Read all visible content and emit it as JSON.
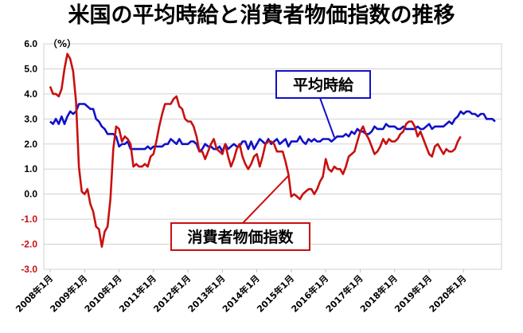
{
  "title": "米国の平均時給と消費者物価指数の推移",
  "chart_data": {
    "type": "line",
    "title": "米国の平均時給と消費者物価指数の推移",
    "unit_label": "（%）",
    "ylim": [
      -3.0,
      6.0
    ],
    "y_ticks": [
      "6.0",
      "5.0",
      "4.0",
      "3.0",
      "2.0",
      "1.0",
      "0.0",
      "-1.0",
      "-2.0",
      "-3.0"
    ],
    "x_start": "2008-01",
    "x_ticks": [
      "2008年1月",
      "2009年1月",
      "2010年1月",
      "2011年1月",
      "2012年1月",
      "2013年1月",
      "2014年1月",
      "2015年1月",
      "2016年1月",
      "2017年1月",
      "2018年1月",
      "2019年1月",
      "2020年1月"
    ],
    "grid": true,
    "colors": {
      "wage": "#1010c8",
      "cpi": "#c81010"
    },
    "series": [
      {
        "name": "平均時給",
        "key": "wage",
        "values": [
          2.9,
          2.8,
          3.0,
          2.8,
          3.1,
          2.8,
          3.1,
          3.3,
          3.2,
          3.3,
          3.6,
          3.6,
          3.6,
          3.5,
          3.4,
          3.4,
          3.0,
          2.9,
          2.7,
          2.6,
          2.4,
          2.4,
          2.4,
          2.3,
          1.9,
          2.0,
          2.0,
          2.1,
          1.8,
          1.8,
          1.8,
          1.8,
          1.8,
          1.8,
          1.9,
          1.8,
          1.9,
          1.9,
          1.9,
          1.9,
          2.0,
          2.0,
          2.2,
          2.1,
          2.0,
          2.2,
          2.0,
          2.0,
          2.0,
          2.1,
          2.1,
          2.0,
          1.7,
          1.8,
          2.0,
          1.9,
          1.9,
          1.8,
          1.8,
          1.9,
          1.7,
          2.0,
          1.8,
          1.9,
          2.0,
          1.9,
          1.9,
          2.1,
          2.1,
          1.8,
          2.1,
          1.8,
          2.0,
          2.2,
          2.1,
          2.0,
          2.2,
          2.0,
          2.1,
          2.2,
          2.0,
          2.1,
          2.2,
          1.9,
          2.1,
          2.1,
          2.1,
          2.3,
          2.1,
          2.0,
          2.2,
          2.1,
          2.2,
          2.1,
          2.1,
          2.2,
          2.2,
          2.2,
          2.1,
          2.2,
          2.3,
          2.3,
          2.3,
          2.4,
          2.3,
          2.5,
          2.4,
          2.6,
          2.5,
          2.5,
          2.4,
          2.4,
          2.5,
          2.7,
          2.6,
          2.6,
          2.6,
          2.8,
          2.7,
          2.7,
          2.7,
          2.6,
          2.6,
          2.7,
          2.6,
          2.6,
          2.6,
          2.6,
          2.7,
          2.6,
          2.6,
          2.7,
          2.8,
          2.6,
          2.7,
          2.7,
          2.7,
          2.7,
          2.8,
          2.9,
          2.8,
          3.0,
          3.1,
          3.3,
          3.2,
          3.3,
          3.3,
          3.2,
          3.2,
          3.1,
          3.2,
          3.2,
          3.0,
          3.0,
          3.0,
          2.9
        ]
      },
      {
        "name": "消費者物価指数",
        "key": "cpi",
        "values": [
          4.3,
          4.0,
          4.0,
          3.9,
          4.2,
          5.0,
          5.6,
          5.4,
          4.9,
          3.7,
          1.1,
          0.1,
          0.0,
          0.2,
          -0.4,
          -0.7,
          -1.3,
          -1.4,
          -2.1,
          -1.5,
          -1.3,
          -0.2,
          1.8,
          2.7,
          2.6,
          2.1,
          2.3,
          2.2,
          2.0,
          1.1,
          1.2,
          1.1,
          1.1,
          1.2,
          1.1,
          1.5,
          1.6,
          2.1,
          2.7,
          3.2,
          3.6,
          3.6,
          3.6,
          3.8,
          3.9,
          3.5,
          3.4,
          3.0,
          2.9,
          2.9,
          2.7,
          2.3,
          1.7,
          1.7,
          1.4,
          1.7,
          2.0,
          2.2,
          1.8,
          1.7,
          1.6,
          2.0,
          1.5,
          1.1,
          1.4,
          1.8,
          2.0,
          1.5,
          1.2,
          1.0,
          1.2,
          1.5,
          1.6,
          1.1,
          1.5,
          2.0,
          2.1,
          2.1,
          2.0,
          1.7,
          1.7,
          1.7,
          1.3,
          0.8,
          -0.1,
          0.0,
          -0.1,
          -0.2,
          0.0,
          0.1,
          0.2,
          0.2,
          0.0,
          0.2,
          0.5,
          0.7,
          1.4,
          1.0,
          0.9,
          1.1,
          1.0,
          1.0,
          0.8,
          1.1,
          1.5,
          1.6,
          1.7,
          2.1,
          2.5,
          2.7,
          2.4,
          2.2,
          1.9,
          1.6,
          1.7,
          1.9,
          2.2,
          2.0,
          2.2,
          2.1,
          2.1,
          2.2,
          2.4,
          2.5,
          2.8,
          2.9,
          2.9,
          2.7,
          2.3,
          2.5,
          2.2,
          1.9,
          1.6,
          1.5,
          1.9,
          2.0,
          1.8,
          1.6,
          1.8,
          1.7,
          1.7,
          1.8,
          2.1,
          2.3
        ]
      }
    ],
    "annotations": [
      {
        "text": "平均時給",
        "series": "wage"
      },
      {
        "text": "消費者物価指数",
        "series": "cpi"
      }
    ]
  }
}
